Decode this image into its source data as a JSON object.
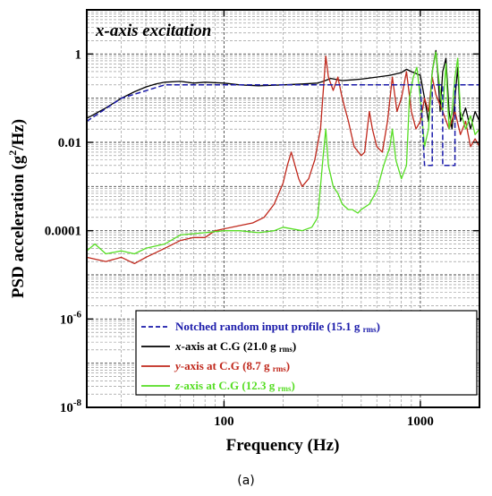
{
  "chart_data": {
    "type": "line",
    "title": "x-axis excitation",
    "panel_label": "(a)",
    "xlabel": "Frequency (Hz)",
    "ylabel": "PSD acceleration (g²/Hz)",
    "xscale": "log",
    "yscale": "log",
    "xlim": [
      20,
      2000
    ],
    "ylim": [
      1e-08,
      10
    ],
    "xticks": [
      {
        "value": 100,
        "label": "100"
      },
      {
        "value": 1000,
        "label": "1000"
      }
    ],
    "yticks": [
      {
        "value": 1,
        "label": "1"
      },
      {
        "value": 0.01,
        "label": "0.01"
      },
      {
        "value": 0.0001,
        "label": "0.0001"
      },
      {
        "value": 1e-06,
        "label": "10-6"
      },
      {
        "value": 1e-08,
        "label": "10-8"
      }
    ],
    "grid": true,
    "legend_position": "bottom-right",
    "series": [
      {
        "name": "Notched random input profile (15.1 g rms)",
        "legend_main": "Notched random input profile (15.1 g",
        "legend_sub": "rms",
        "legend_tail": ")",
        "color": "#1a1aaa",
        "dash": true,
        "points": [
          [
            20,
            0.03
          ],
          [
            30,
            0.1
          ],
          [
            50,
            0.2
          ],
          [
            80,
            0.2
          ],
          [
            100,
            0.2
          ],
          [
            300,
            0.2
          ],
          [
            600,
            0.2
          ],
          [
            800,
            0.2
          ],
          [
            1000,
            0.2
          ],
          [
            1050,
            0.003
          ],
          [
            1150,
            0.003
          ],
          [
            1150,
            0.2
          ],
          [
            1300,
            0.2
          ],
          [
            1300,
            0.003
          ],
          [
            1500,
            0.003
          ],
          [
            1500,
            0.2
          ],
          [
            2000,
            0.2
          ]
        ]
      },
      {
        "name": "x-axis at C.G (21.0 g rms)",
        "legend_axis": "x",
        "legend_main": "-axis at C.G (21.0 g",
        "legend_sub": "rms",
        "legend_tail": ")",
        "color": "#000000",
        "points": [
          [
            20,
            0.035
          ],
          [
            25,
            0.06
          ],
          [
            30,
            0.1
          ],
          [
            35,
            0.14
          ],
          [
            40,
            0.18
          ],
          [
            45,
            0.21
          ],
          [
            50,
            0.23
          ],
          [
            60,
            0.24
          ],
          [
            70,
            0.22
          ],
          [
            80,
            0.23
          ],
          [
            100,
            0.22
          ],
          [
            120,
            0.2
          ],
          [
            150,
            0.19
          ],
          [
            200,
            0.2
          ],
          [
            250,
            0.21
          ],
          [
            300,
            0.22
          ],
          [
            320,
            0.24
          ],
          [
            350,
            0.28
          ],
          [
            400,
            0.25
          ],
          [
            450,
            0.26
          ],
          [
            500,
            0.27
          ],
          [
            600,
            0.3
          ],
          [
            700,
            0.33
          ],
          [
            800,
            0.38
          ],
          [
            850,
            0.45
          ],
          [
            900,
            0.4
          ],
          [
            1000,
            0.33
          ],
          [
            1050,
            0.1
          ],
          [
            1100,
            0.03
          ],
          [
            1150,
            0.4
          ],
          [
            1200,
            1.2
          ],
          [
            1230,
            0.3
          ],
          [
            1260,
            0.05
          ],
          [
            1300,
            0.4
          ],
          [
            1350,
            0.8
          ],
          [
            1400,
            0.05
          ],
          [
            1450,
            0.02
          ],
          [
            1500,
            0.1
          ],
          [
            1550,
            0.5
          ],
          [
            1600,
            0.03
          ],
          [
            1700,
            0.06
          ],
          [
            1800,
            0.02
          ],
          [
            1900,
            0.05
          ],
          [
            2000,
            0.03
          ]
        ]
      },
      {
        "name": "y-axis at C.G (8.7 g rms)",
        "legend_axis": "y",
        "legend_main": "-axis at C.G (8.7 g",
        "legend_sub": "rms",
        "legend_tail": ")",
        "color": "#c0281c",
        "points": [
          [
            20,
            2.5e-05
          ],
          [
            25,
            2e-05
          ],
          [
            30,
            2.5e-05
          ],
          [
            35,
            1.8e-05
          ],
          [
            40,
            2.5e-05
          ],
          [
            50,
            4e-05
          ],
          [
            60,
            6e-05
          ],
          [
            70,
            7e-05
          ],
          [
            80,
            7e-05
          ],
          [
            90,
            0.0001
          ],
          [
            100,
            0.00011
          ],
          [
            120,
            0.00013
          ],
          [
            140,
            0.00015
          ],
          [
            160,
            0.0002
          ],
          [
            180,
            0.0004
          ],
          [
            200,
            0.0012
          ],
          [
            210,
            0.003
          ],
          [
            220,
            0.006
          ],
          [
            230,
            0.003
          ],
          [
            240,
            0.0015
          ],
          [
            250,
            0.001
          ],
          [
            270,
            0.0015
          ],
          [
            290,
            0.004
          ],
          [
            310,
            0.02
          ],
          [
            330,
            0.9
          ],
          [
            340,
            0.3
          ],
          [
            360,
            0.15
          ],
          [
            380,
            0.3
          ],
          [
            400,
            0.1
          ],
          [
            430,
            0.03
          ],
          [
            460,
            0.008
          ],
          [
            500,
            0.005
          ],
          [
            520,
            0.006
          ],
          [
            550,
            0.05
          ],
          [
            570,
            0.02
          ],
          [
            600,
            0.008
          ],
          [
            640,
            0.006
          ],
          [
            680,
            0.03
          ],
          [
            720,
            0.3
          ],
          [
            760,
            0.05
          ],
          [
            800,
            0.1
          ],
          [
            850,
            0.4
          ],
          [
            900,
            0.05
          ],
          [
            950,
            0.02
          ],
          [
            1000,
            0.03
          ],
          [
            1050,
            0.1
          ],
          [
            1100,
            0.05
          ],
          [
            1150,
            0.3
          ],
          [
            1200,
            0.12
          ],
          [
            1300,
            0.05
          ],
          [
            1400,
            0.02
          ],
          [
            1500,
            0.05
          ],
          [
            1600,
            0.015
          ],
          [
            1700,
            0.03
          ],
          [
            1800,
            0.008
          ],
          [
            1900,
            0.012
          ],
          [
            2000,
            0.008
          ]
        ]
      },
      {
        "name": "z-axis at C.G (12.3 g rms)",
        "legend_axis": "z",
        "legend_main": "-axis at C.G (12.3 g",
        "legend_sub": "rms",
        "legend_tail": ")",
        "color": "#55dd22",
        "points": [
          [
            20,
            3.5e-05
          ],
          [
            22,
            5e-05
          ],
          [
            25,
            3e-05
          ],
          [
            30,
            3.5e-05
          ],
          [
            35,
            3e-05
          ],
          [
            40,
            4e-05
          ],
          [
            50,
            5e-05
          ],
          [
            60,
            8e-05
          ],
          [
            80,
            9e-05
          ],
          [
            100,
            0.0001
          ],
          [
            120,
            0.0001
          ],
          [
            150,
            9e-05
          ],
          [
            180,
            0.0001
          ],
          [
            200,
            0.00012
          ],
          [
            250,
            0.0001
          ],
          [
            280,
            0.00012
          ],
          [
            300,
            0.0002
          ],
          [
            320,
            0.005
          ],
          [
            330,
            0.02
          ],
          [
            340,
            0.003
          ],
          [
            360,
            0.001
          ],
          [
            380,
            0.0007
          ],
          [
            400,
            0.0004
          ],
          [
            430,
            0.0003
          ],
          [
            450,
            0.0003
          ],
          [
            480,
            0.00025
          ],
          [
            500,
            0.0003
          ],
          [
            550,
            0.0004
          ],
          [
            600,
            0.0008
          ],
          [
            650,
            0.003
          ],
          [
            700,
            0.008
          ],
          [
            720,
            0.02
          ],
          [
            750,
            0.004
          ],
          [
            800,
            0.0015
          ],
          [
            850,
            0.003
          ],
          [
            880,
            0.1
          ],
          [
            920,
            0.3
          ],
          [
            960,
            0.5
          ],
          [
            1000,
            0.1
          ],
          [
            1050,
            0.008
          ],
          [
            1100,
            0.02
          ],
          [
            1150,
            0.4
          ],
          [
            1200,
            1.1
          ],
          [
            1250,
            0.2
          ],
          [
            1300,
            0.05
          ],
          [
            1350,
            0.6
          ],
          [
            1400,
            0.02
          ],
          [
            1450,
            0.05
          ],
          [
            1500,
            0.3
          ],
          [
            1550,
            0.8
          ],
          [
            1600,
            0.05
          ],
          [
            1700,
            0.02
          ],
          [
            1800,
            0.04
          ],
          [
            1900,
            0.015
          ],
          [
            2000,
            0.02
          ]
        ]
      }
    ]
  }
}
